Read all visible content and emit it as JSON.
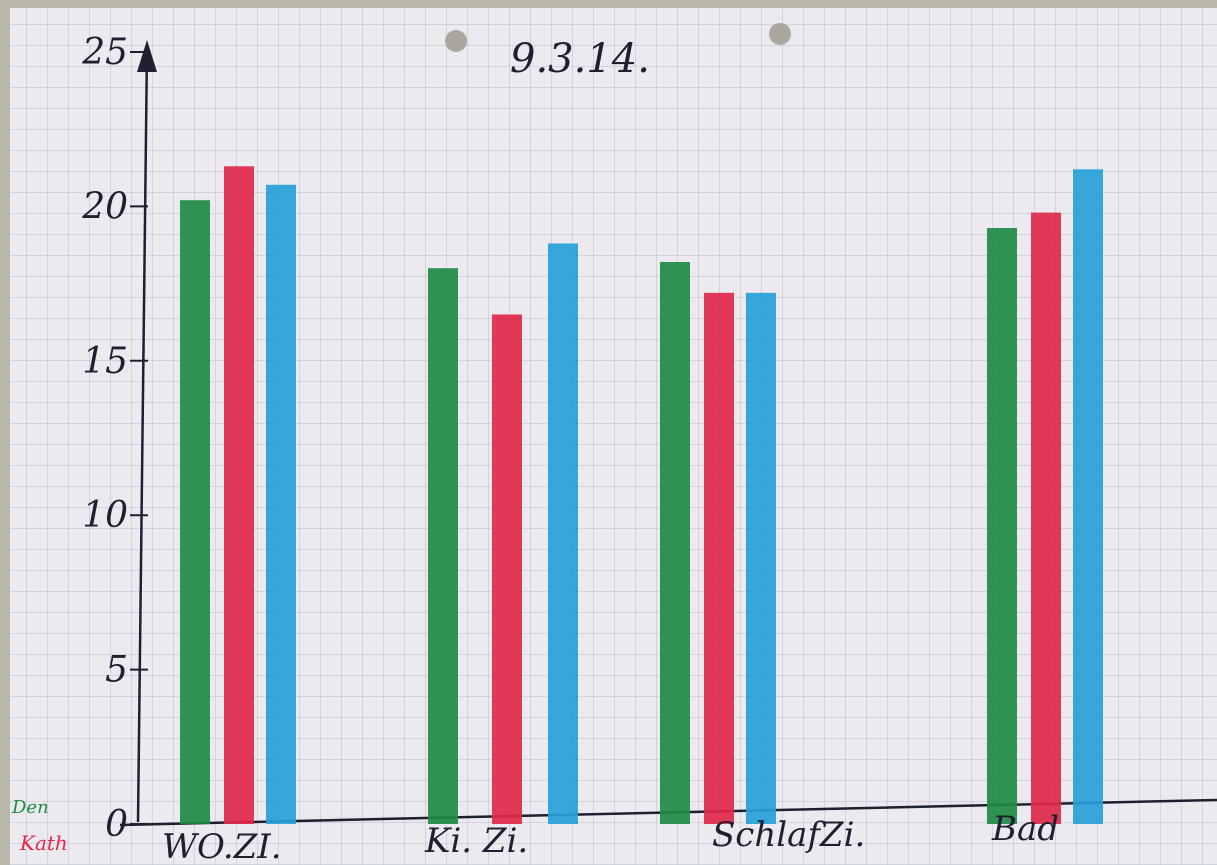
{
  "chart_data": {
    "type": "bar",
    "title": "9.3.14.",
    "categories": [
      "WO.ZI.",
      "Ki. Zi.",
      "SchlafZi.",
      "Bad"
    ],
    "series": [
      {
        "name": "Den",
        "color": "#1e8a44",
        "values": [
          20.2,
          18.0,
          18.2,
          19.3
        ]
      },
      {
        "name": "Kath",
        "color": "#e0284a",
        "values": [
          21.3,
          16.5,
          17.2,
          19.8
        ]
      },
      {
        "name": "",
        "color": "#27a0d8",
        "values": [
          20.7,
          18.8,
          17.2,
          21.2
        ]
      }
    ],
    "y_ticks": [
      "0",
      "5",
      "10",
      "15",
      "20",
      "25"
    ],
    "ylim": [
      0,
      25
    ],
    "grid": true,
    "legend_position": "bottom-left"
  }
}
